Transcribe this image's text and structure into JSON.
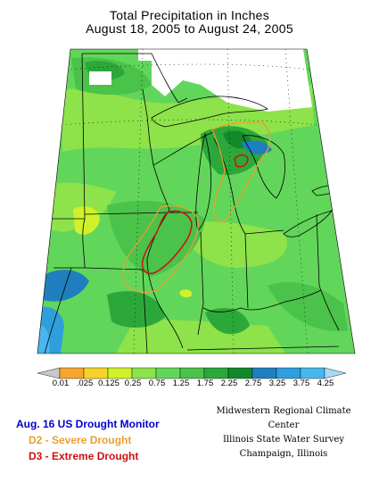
{
  "title": {
    "line1": "Total Precipitation in Inches",
    "line2": "August 18, 2005 to August 24, 2005"
  },
  "legend": {
    "labels": [
      "0.01",
      ".025",
      "0.125",
      "0.25",
      "0.75",
      "1.25",
      "1.75",
      "2.25",
      "2.75",
      "3.25",
      "3.75",
      "4.25"
    ],
    "colors": {
      "below_min": "#c8c8c8",
      "c1": "#f7a62f",
      "c2": "#f7d22a",
      "c3": "#cff22a",
      "c4": "#8ee24a",
      "c5": "#62d65a",
      "c6": "#4bc24a",
      "c7": "#2ca83a",
      "c8": "#12892a",
      "c9": "#1f7fbe",
      "c10": "#2e9fdc",
      "c11": "#49b6ee",
      "above_max": "#a9d8f5"
    }
  },
  "drought_key": {
    "heading": "Aug. 16 US Drought Monitor",
    "d2": "D2 - Severe Drought",
    "d3": "D3 - Extreme Drought",
    "heading_color": "#0000cc",
    "d2_color": "#e8a030",
    "d3_color": "#cc1111"
  },
  "credits": {
    "line1": "Midwestern Regional Climate Center",
    "line2": "Illinois State Water Survey",
    "line3": "Champaign, Illinois"
  }
}
